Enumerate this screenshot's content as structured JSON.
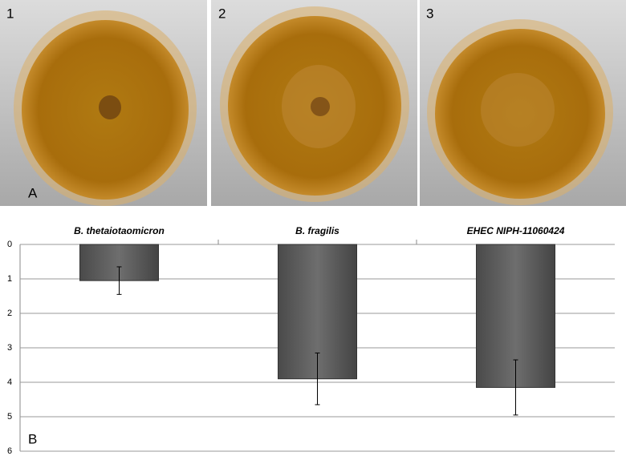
{
  "panels": {
    "photo_labels": [
      "1",
      "2",
      "3"
    ],
    "photo_panel_label": "A",
    "chart_panel_label": "B"
  },
  "chart_data": {
    "type": "bar",
    "categories": [
      "B. thetaiotaomicron",
      "B. fragilis",
      "EHEC NIPH-11060424"
    ],
    "values": [
      1.05,
      3.9,
      4.15
    ],
    "errors": [
      0.4,
      0.75,
      0.8
    ],
    "color": "#595959",
    "ylim": [
      0,
      6
    ],
    "yticks": [
      0,
      1,
      2,
      3,
      4,
      5,
      6
    ],
    "y_inverted": true,
    "grid": true
  }
}
